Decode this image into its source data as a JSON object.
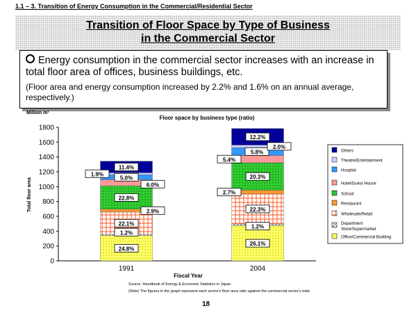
{
  "header": {
    "section": "1.1 – 3. Transition of Energy Consumption in the Commercial/Residential Sector"
  },
  "title": {
    "line1": "Transition of Floor Space by Type of Business",
    "line2": "in the Commercial Sector"
  },
  "summary": {
    "bullet": "Energy consumption in the commercial sector increases with an increase in total floor area of offices, business buildings, etc.",
    "note": "(Floor area and energy consumption increased by 2.2% and 1.6% on an annual average, respectively.)"
  },
  "footer": {
    "source": "Source: Handbook of Energy & Economic Statistics in Japan",
    "note": "(Note) The figures in the graph represent each sector's floor area ratio against the commercial sector's total.",
    "page": "18"
  },
  "colors": {
    "office": "#ffff66",
    "department": "#ffffff",
    "wholesale": "#ff9966",
    "restaurant": "#ff9933",
    "school": "#33cc33",
    "hotel": "#ff9999",
    "hospital": "#3399ff",
    "theatre": "#ccccff",
    "others": "#000099"
  },
  "chart_data": {
    "type": "bar",
    "stacked": true,
    "title": "Floor space by business type (ratio)",
    "unit_label": "Million m²",
    "xlabel": "Fiscal Year",
    "ylabel": "Total floor area",
    "ylim": [
      0,
      1800
    ],
    "yticks": [
      0,
      200,
      400,
      600,
      800,
      1000,
      1200,
      1400,
      1600,
      1800
    ],
    "grid": false,
    "legend_position": "right",
    "categories": [
      "1991",
      "2004"
    ],
    "series": [
      {
        "name": "Office/Commercial Building",
        "key": "office",
        "values": [
          340,
          475
        ],
        "labels": [
          "24.8%",
          "26.1%"
        ]
      },
      {
        "name": "Department Store/Supermarket",
        "key": "department",
        "values": [
          17,
          22
        ],
        "labels": [
          "1.2%",
          "1.2%"
        ]
      },
      {
        "name": "Wholesale/Retail",
        "key": "wholesale",
        "values": [
          300,
          405
        ],
        "labels": [
          "22.1%",
          "22.3%"
        ]
      },
      {
        "name": "Restaurant",
        "key": "restaurant",
        "values": [
          40,
          50
        ],
        "labels": [
          "2.9%",
          "2.7%"
        ]
      },
      {
        "name": "School",
        "key": "school",
        "values": [
          314,
          370
        ],
        "labels": [
          "22.8%",
          "20.3%"
        ]
      },
      {
        "name": "Hotel/Guest House",
        "key": "hotel",
        "values": [
          82,
          98
        ],
        "labels": [
          "6.0%",
          "5.4%"
        ]
      },
      {
        "name": "Hospital",
        "key": "hospital",
        "values": [
          68,
          105
        ],
        "labels": [
          "5.0%",
          "5.8%"
        ]
      },
      {
        "name": "Theatre/Entertainment",
        "key": "theatre",
        "values": [
          26,
          36
        ],
        "labels": [
          "1.9%",
          "2.0%"
        ]
      },
      {
        "name": "Others",
        "key": "others",
        "values": [
          156,
          222
        ],
        "labels": [
          "11.4%",
          "12.2%"
        ]
      }
    ]
  }
}
